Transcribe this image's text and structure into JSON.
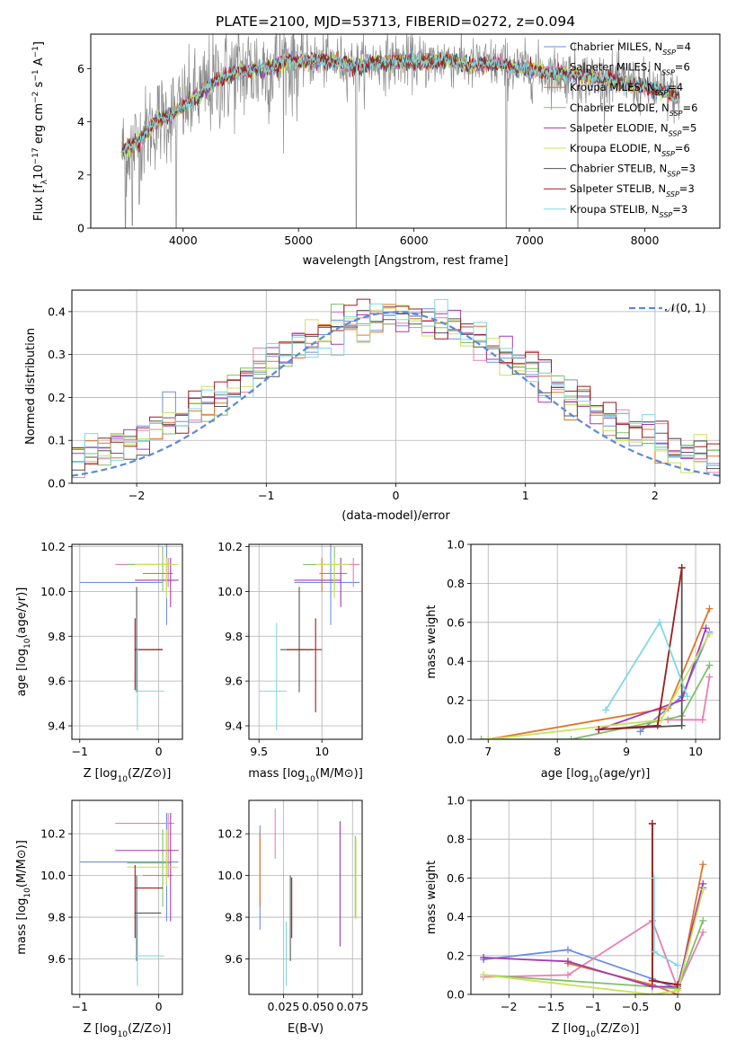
{
  "colors": {
    "Chabrier MILES": "#6b8fe0",
    "Salpeter MILES": "#e87fb4",
    "Kroupa MILES": "#e0752b",
    "Chabrier ELODIE": "#7fbf6a",
    "Salpeter ELODIE": "#a33ab0",
    "Kroupa ELODIE": "#c8e35a",
    "Chabrier STELIB": "#555555",
    "Salpeter STELIB": "#a01b1b",
    "Kroupa STELIB": "#7fd9e0",
    "data": "#8a8a8a"
  },
  "chart_data": [
    {
      "id": "spectrum",
      "type": "line",
      "title": "PLATE=2100, MJD=53713, FIBERID=0272, z=0.094",
      "xlabel": "wavelength [Angstrom, rest frame]",
      "ylabel": "Flux [f_λ 10^-17 erg cm^-2 s^-1 A^-1]",
      "ylabel_parts": {
        "a": "Flux [f",
        "b": "λ",
        "c": "10",
        "d": "−17",
        "e": " erg cm",
        "f": "−2",
        "g": " s",
        "h": "−1",
        "i": " A",
        "j": "−1",
        "k": "]"
      },
      "xlim": [
        3200,
        8650
      ],
      "ylim": [
        0,
        7.3
      ],
      "xticks": [
        4000,
        5000,
        6000,
        7000,
        8000
      ],
      "yticks": [
        0,
        2,
        4,
        6
      ],
      "continuum": [
        [
          3470,
          2.9
        ],
        [
          3600,
          3.2
        ],
        [
          3700,
          3.7
        ],
        [
          3800,
          4.1
        ],
        [
          3950,
          4.4
        ],
        [
          4100,
          4.9
        ],
        [
          4300,
          5.6
        ],
        [
          4500,
          5.9
        ],
        [
          4700,
          6.0
        ],
        [
          4900,
          6.3
        ],
        [
          5100,
          6.3
        ],
        [
          5300,
          6.3
        ],
        [
          5500,
          6.1
        ],
        [
          5700,
          6.25
        ],
        [
          5900,
          6.3
        ],
        [
          6100,
          6.25
        ],
        [
          6300,
          6.35
        ],
        [
          6500,
          6.1
        ],
        [
          6700,
          6.2
        ],
        [
          6900,
          6.0
        ],
        [
          7100,
          5.9
        ],
        [
          7300,
          5.8
        ],
        [
          7500,
          5.7
        ],
        [
          7700,
          5.6
        ],
        [
          7900,
          5.4
        ],
        [
          8100,
          5.2
        ],
        [
          8300,
          4.9
        ]
      ],
      "dropouts": [
        [
          3500,
          0
        ],
        [
          3560,
          0.1
        ],
        [
          3620,
          0.9
        ],
        [
          3940,
          0
        ],
        [
          5500,
          0
        ],
        [
          6800,
          0
        ],
        [
          7420,
          0
        ]
      ],
      "series": [
        {
          "name": "Chabrier MILES",
          "nssp": "4"
        },
        {
          "name": "Salpeter MILES",
          "nssp": "6"
        },
        {
          "name": "Kroupa MILES",
          "nssp": "4"
        },
        {
          "name": "Chabrier ELODIE",
          "nssp": "6"
        },
        {
          "name": "Salpeter ELODIE",
          "nssp": "5"
        },
        {
          "name": "Kroupa ELODIE",
          "nssp": "6"
        },
        {
          "name": "Chabrier STELIB",
          "nssp": "3"
        },
        {
          "name": "Salpeter STELIB",
          "nssp": "3"
        },
        {
          "name": "Kroupa STELIB",
          "nssp": "3"
        }
      ],
      "legend_placement": "right"
    },
    {
      "id": "residuals",
      "type": "line",
      "xlabel": "(data-model)/error",
      "ylabel": "Normed distribution",
      "xlim": [
        -2.5,
        2.5
      ],
      "ylim": [
        0,
        0.45
      ],
      "xticks": [
        -2,
        -1,
        0,
        1,
        2
      ],
      "yticks": [
        0.0,
        0.1,
        0.2,
        0.3,
        0.4
      ],
      "grid": true,
      "bin_width": 0.1,
      "reference": {
        "label": "𝒩(0, 1)",
        "mean": 0,
        "sigma": 1
      },
      "legend_placement": "top-right"
    },
    {
      "id": "age_vs_Z",
      "type": "scatter",
      "xlabel": "Z [log10(Z/Z⊙)]",
      "ylabel": "age [log10(age/yr)]",
      "xlim": [
        -1.1,
        0.3
      ],
      "ylim": [
        9.34,
        10.21
      ],
      "xticks": [
        -1,
        0
      ],
      "yticks": [
        9.4,
        9.6,
        9.8,
        10.0,
        10.2
      ],
      "grid": true,
      "points": [
        {
          "series": "Chabrier MILES",
          "x": [
            -1.0,
            0.05
          ],
          "y": [
            9.85,
            10.22
          ],
          "cx": 0.1,
          "cy": 10.04
        },
        {
          "series": "Salpeter MILES",
          "x": [
            -0.55,
            0.2
          ],
          "y": [
            10.02,
            10.15
          ],
          "cx": 0.12,
          "cy": 10.12
        },
        {
          "series": "Kroupa MILES",
          "x": [
            -0.2,
            0.18
          ],
          "y": [
            10.0,
            10.15
          ],
          "cx": 0.1,
          "cy": 10.08
        },
        {
          "series": "Chabrier ELODIE",
          "x": [
            -0.4,
            0.15
          ],
          "y": [
            10.0,
            10.2
          ],
          "cx": 0.05,
          "cy": 10.12
        },
        {
          "series": "Salpeter ELODIE",
          "x": [
            -0.3,
            0.25
          ],
          "y": [
            9.93,
            10.15
          ],
          "cx": 0.15,
          "cy": 10.05
        },
        {
          "series": "Kroupa ELODIE",
          "x": [
            -0.3,
            0.25
          ],
          "y": [
            9.97,
            10.15
          ],
          "cx": 0.1,
          "cy": 10.12
        },
        {
          "series": "Chabrier STELIB",
          "x": [
            -0.3,
            0.05
          ],
          "y": [
            9.55,
            10.02
          ],
          "cx": -0.28,
          "cy": 9.74
        },
        {
          "series": "Salpeter STELIB",
          "x": [
            -0.3,
            0.05
          ],
          "y": [
            9.56,
            9.88
          ],
          "cx": -0.3,
          "cy": 9.74
        },
        {
          "series": "Kroupa STELIB",
          "x": [
            -0.3,
            0.07
          ],
          "y": [
            9.38,
            9.75
          ],
          "cx": -0.27,
          "cy": 9.555
        }
      ]
    },
    {
      "id": "age_vs_mass",
      "type": "scatter",
      "xlabel": "mass [log10(M/M⊙)]",
      "ylabel": "",
      "xlim": [
        9.42,
        10.32
      ],
      "ylim": [
        9.34,
        10.21
      ],
      "xticks": [
        9.5,
        10.0
      ],
      "yticks": [
        9.4,
        9.6,
        9.8,
        10.0,
        10.2
      ],
      "grid": true,
      "points": [
        {
          "series": "Chabrier MILES",
          "x": [
            9.78,
            10.3
          ],
          "y": [
            9.85,
            10.22
          ],
          "cx": 10.07,
          "cy": 10.04
        },
        {
          "series": "Salpeter MILES",
          "x": [
            9.99,
            10.3
          ],
          "y": [
            10.02,
            10.15
          ],
          "cx": 10.25,
          "cy": 10.12
        },
        {
          "series": "Kroupa MILES",
          "x": [
            9.98,
            10.2
          ],
          "y": [
            10.0,
            10.15
          ],
          "cx": 10.0,
          "cy": 10.08
        },
        {
          "series": "Chabrier ELODIE",
          "x": [
            9.85,
            10.22
          ],
          "y": [
            10.0,
            10.2
          ],
          "cx": 10.1,
          "cy": 10.12
        },
        {
          "series": "Salpeter ELODIE",
          "x": [
            9.78,
            10.15
          ],
          "y": [
            9.93,
            10.15
          ],
          "cx": 10.15,
          "cy": 10.05
        },
        {
          "series": "Kroupa ELODIE",
          "x": [
            9.95,
            10.22
          ],
          "y": [
            9.97,
            10.15
          ],
          "cx": 10.1,
          "cy": 10.12
        },
        {
          "series": "Chabrier STELIB",
          "x": [
            9.67,
            9.93
          ],
          "y": [
            9.55,
            10.02
          ],
          "cx": 9.82,
          "cy": 9.74
        },
        {
          "series": "Salpeter STELIB",
          "x": [
            9.72,
            10.0
          ],
          "y": [
            9.46,
            9.88
          ],
          "cx": 9.95,
          "cy": 9.74
        },
        {
          "series": "Kroupa STELIB",
          "x": [
            9.5,
            9.72
          ],
          "y": [
            9.38,
            9.86
          ],
          "cx": 9.64,
          "cy": 9.555
        }
      ]
    },
    {
      "id": "weight_vs_age",
      "type": "line",
      "xlabel": "age [log10(age/yr)]",
      "ylabel": "mass weight",
      "xlim": [
        6.75,
        10.35
      ],
      "ylim": [
        0,
        1.0
      ],
      "xticks": [
        7,
        8,
        9,
        10
      ],
      "yticks": [
        0.0,
        0.2,
        0.4,
        0.6,
        0.8,
        1.0
      ],
      "grid": true,
      "series": [
        {
          "name": "Chabrier MILES",
          "x": [
            9.2,
            9.8,
            10.2
          ],
          "y": [
            0.04,
            0.22,
            0.55
          ]
        },
        {
          "name": "Salpeter MILES",
          "x": [
            9.6,
            10.1,
            10.2
          ],
          "y": [
            0.1,
            0.1,
            0.32
          ]
        },
        {
          "name": "Kroupa MILES",
          "x": [
            7.0,
            9.6,
            10.2
          ],
          "y": [
            0.0,
            0.16,
            0.67
          ]
        },
        {
          "name": "Chabrier ELODIE",
          "x": [
            6.9,
            8.2,
            9.8,
            10.2
          ],
          "y": [
            0.0,
            0.0,
            0.12,
            0.38
          ]
        },
        {
          "name": "Salpeter ELODIE",
          "x": [
            8.6,
            9.8,
            10.15
          ],
          "y": [
            0.05,
            0.2,
            0.57
          ]
        },
        {
          "name": "Kroupa ELODIE",
          "x": [
            7.0,
            9.5,
            10.2
          ],
          "y": [
            0.0,
            0.1,
            0.54
          ]
        },
        {
          "name": "Chabrier STELIB",
          "x": [
            8.6,
            9.8,
            9.8
          ],
          "y": [
            0.05,
            0.07,
            0.88
          ]
        },
        {
          "name": "Salpeter STELIB",
          "x": [
            8.6,
            9.45,
            9.8
          ],
          "y": [
            0.05,
            0.07,
            0.88
          ]
        },
        {
          "name": "Kroupa STELIB",
          "x": [
            8.7,
            9.48,
            9.88
          ],
          "y": [
            0.15,
            0.6,
            0.22
          ]
        }
      ]
    },
    {
      "id": "mass_vs_Z",
      "type": "scatter",
      "xlabel": "Z [log10(Z/Z⊙)]",
      "ylabel": "mass [log10(M/M⊙)]",
      "xlim": [
        -1.1,
        0.3
      ],
      "ylim": [
        9.43,
        10.36
      ],
      "xticks": [
        -1,
        0
      ],
      "yticks": [
        9.6,
        9.8,
        10.0,
        10.2
      ],
      "grid": true,
      "points": [
        {
          "series": "Chabrier MILES",
          "x": [
            -1.0,
            0.25
          ],
          "y": [
            9.78,
            10.3
          ],
          "cx": 0.1,
          "cy": 10.065
        },
        {
          "series": "Salpeter MILES",
          "x": [
            -0.55,
            0.2
          ],
          "y": [
            9.99,
            10.3
          ],
          "cx": 0.12,
          "cy": 10.25
        },
        {
          "series": "Kroupa MILES",
          "x": [
            -0.2,
            0.18
          ],
          "y": [
            9.98,
            10.2
          ],
          "cx": 0.1,
          "cy": 10.0
        },
        {
          "series": "Chabrier ELODIE",
          "x": [
            -0.4,
            0.15
          ],
          "y": [
            9.85,
            10.22
          ],
          "cx": 0.05,
          "cy": 10.06
        },
        {
          "series": "Salpeter ELODIE",
          "x": [
            -0.55,
            0.25
          ],
          "y": [
            9.78,
            10.3
          ],
          "cx": 0.15,
          "cy": 10.12
        },
        {
          "series": "Kroupa ELODIE",
          "x": [
            -0.4,
            0.25
          ],
          "y": [
            9.95,
            10.22
          ],
          "cx": 0.1,
          "cy": 10.04
        },
        {
          "series": "Chabrier STELIB",
          "x": [
            -0.3,
            0.03
          ],
          "y": [
            9.59,
            10.0
          ],
          "cx": -0.28,
          "cy": 9.82
        },
        {
          "series": "Salpeter STELIB",
          "x": [
            -0.3,
            0.05
          ],
          "y": [
            9.7,
            10.05
          ],
          "cx": -0.3,
          "cy": 9.94
        },
        {
          "series": "Kroupa STELIB",
          "x": [
            -0.3,
            0.07
          ],
          "y": [
            9.47,
            9.82
          ],
          "cx": -0.27,
          "cy": 9.615
        }
      ]
    },
    {
      "id": "mass_vs_EBV",
      "type": "scatter",
      "xlabel": "E(B-V)",
      "ylabel": "",
      "xlim": [
        0.0,
        0.082
      ],
      "ylim": [
        9.43,
        10.36
      ],
      "xticks": [
        0.025,
        0.05,
        0.075
      ],
      "xticklabels": [
        "0.025",
        "0.050",
        "0.075"
      ],
      "yticks": [
        9.6,
        9.8,
        10.0,
        10.2
      ],
      "grid": true,
      "bars": [
        {
          "series": "Chabrier MILES",
          "x": 0.008,
          "y": [
            9.74,
            10.24
          ]
        },
        {
          "series": "Kroupa MILES",
          "x": 0.008,
          "y": [
            9.85,
            10.2
          ]
        },
        {
          "series": "Salpeter MILES",
          "x": 0.019,
          "y": [
            10.08,
            10.32
          ]
        },
        {
          "series": "Kroupa STELIB",
          "x": 0.027,
          "y": [
            9.47,
            9.78
          ]
        },
        {
          "series": "Chabrier STELIB",
          "x": 0.03,
          "y": [
            9.59,
            10.0
          ]
        },
        {
          "series": "Salpeter STELIB",
          "x": 0.031,
          "y": [
            9.7,
            9.99
          ]
        },
        {
          "series": "Salpeter ELODIE",
          "x": 0.066,
          "y": [
            9.66,
            10.26
          ]
        },
        {
          "series": "Chabrier ELODIE",
          "x": 0.077,
          "y": [
            9.8,
            10.19
          ]
        },
        {
          "series": "Kroupa ELODIE",
          "x": 0.0775,
          "y": [
            9.79,
            10.18
          ]
        }
      ]
    },
    {
      "id": "weight_vs_Z",
      "type": "line",
      "xlabel": "Z [log10(Z/Z⊙)]",
      "ylabel": "mass weight",
      "xlim": [
        -2.45,
        0.5
      ],
      "ylim": [
        0,
        1.0
      ],
      "xticks": [
        -2.0,
        -1.5,
        -1.0,
        -0.5,
        0.0
      ],
      "yticks": [
        0.0,
        0.2,
        0.4,
        0.6,
        0.8,
        1.0
      ],
      "grid": true,
      "series": [
        {
          "name": "Chabrier MILES",
          "x": [
            -2.3,
            -1.3,
            -0.3,
            0.0,
            0.3
          ],
          "y": [
            0.18,
            0.23,
            0.08,
            0.03,
            0.55
          ]
        },
        {
          "name": "Salpeter MILES",
          "x": [
            -2.3,
            -1.3,
            -0.3,
            0.0,
            0.3
          ],
          "y": [
            0.09,
            0.1,
            0.38,
            0.03,
            0.32
          ]
        },
        {
          "name": "Kroupa MILES",
          "x": [
            -1.3,
            -0.3,
            0.0,
            0.3
          ],
          "y": [
            0.16,
            0.05,
            0.0,
            0.67
          ]
        },
        {
          "name": "Chabrier ELODIE",
          "x": [
            -2.3,
            -0.3,
            0.0,
            0.3
          ],
          "y": [
            0.1,
            0.04,
            0.03,
            0.38
          ]
        },
        {
          "name": "Salpeter ELODIE",
          "x": [
            -2.3,
            -1.3,
            -0.3,
            0.0,
            0.3
          ],
          "y": [
            0.19,
            0.17,
            0.04,
            0.04,
            0.57
          ]
        },
        {
          "name": "Kroupa ELODIE",
          "x": [
            -2.3,
            -0.3,
            0.0,
            0.3
          ],
          "y": [
            0.1,
            0.0,
            0.02,
            0.54
          ]
        },
        {
          "name": "Chabrier STELIB",
          "x": [
            -0.3,
            -0.3,
            0.0
          ],
          "y": [
            0.88,
            0.07,
            0.05
          ]
        },
        {
          "name": "Salpeter STELIB",
          "x": [
            -0.3,
            -0.3,
            0.0
          ],
          "y": [
            0.88,
            0.07,
            0.05
          ]
        },
        {
          "name": "Kroupa STELIB",
          "x": [
            -0.28,
            -0.28,
            0.0
          ],
          "y": [
            0.6,
            0.22,
            0.15
          ]
        }
      ]
    }
  ]
}
